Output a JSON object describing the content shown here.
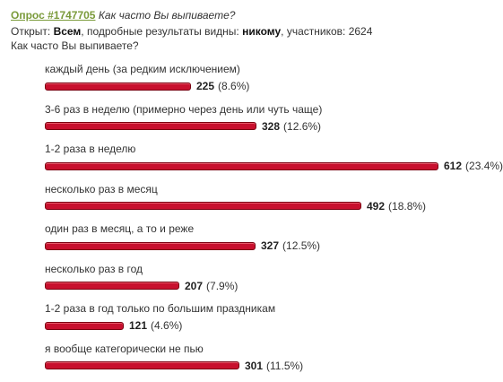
{
  "poll": {
    "id_label": "Опрос #1747705",
    "title": "Как часто Вы выпиваете?",
    "meta": {
      "open_label": "Открыт:",
      "open_value": "Всем",
      "results_label": ", подробные результаты видны:",
      "results_value": "никому",
      "participants_label": ", участников:",
      "participants_value": "2624"
    },
    "question": "Как часто Вы выпиваете?",
    "options": [
      {
        "label": "каждый день (за редким исключением)",
        "count": "225",
        "percent": "(8.6%)",
        "value": 225
      },
      {
        "label": "3-6 раз в неделю (примерно через день или чуть чаще)",
        "count": "328",
        "percent": "(12.6%)",
        "value": 328
      },
      {
        "label": "1-2 раза в неделю",
        "count": "612",
        "percent": "(23.4%)",
        "value": 612
      },
      {
        "label": "несколько раз в месяц",
        "count": "492",
        "percent": "(18.8%)",
        "value": 492
      },
      {
        "label": "один раз в месяц, а то и реже",
        "count": "327",
        "percent": "(12.5%)",
        "value": 327
      },
      {
        "label": "несколько раз в год",
        "count": "207",
        "percent": "(7.9%)",
        "value": 207
      },
      {
        "label": "1-2 раза в год только по большим праздникам",
        "count": "121",
        "percent": "(4.6%)",
        "value": 121
      },
      {
        "label": "я вообще категорически не пью",
        "count": "301",
        "percent": "(11.5%)",
        "value": 301
      }
    ]
  },
  "colors": {
    "bar": "#c8102e",
    "link": "#7a9a3a"
  }
}
